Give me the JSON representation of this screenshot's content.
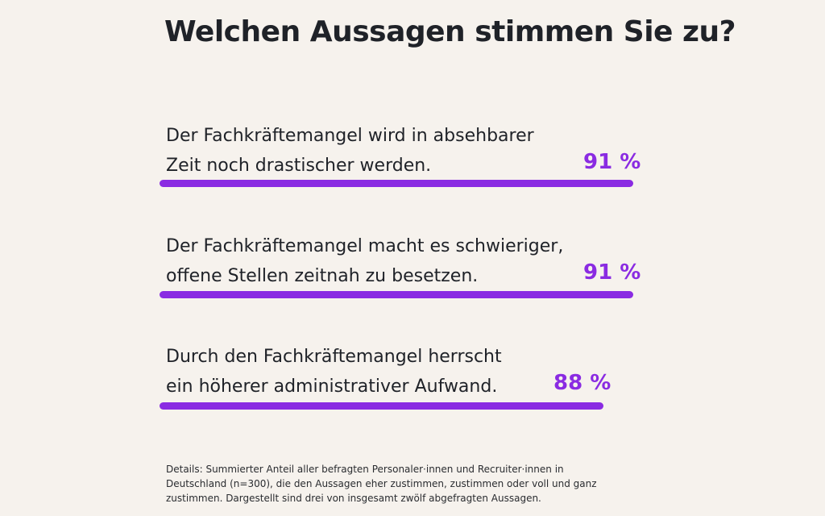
{
  "chart_data": {
    "type": "bar",
    "orientation": "horizontal",
    "title": "Welchen Aussagen stimmen Sie zu?",
    "categories": [
      "Der Fachkräftemangel wird in absehbarer Zeit noch drastischer werden.",
      "Der Fachkräftemangel macht es schwieriger, offene Stellen zeitnah zu besetzen.",
      "Durch den Fachkräftemangel herrscht ein höherer administrativer Aufwand."
    ],
    "values": [
      91,
      91,
      88
    ],
    "unit": "%",
    "xlim": [
      0,
      100
    ],
    "bar_color": "#8a2be2",
    "footnote": "Details: Summierter Anteil aller befragten Personaler·innen und Recruiter·innen in Deutschland (n=300), die den Aussagen eher zustimmen, zustimmen oder voll und ganz zustimmen. Dargestellt sind drei von insgesamt zwölf abgefragten Aussagen."
  },
  "items": [
    {
      "label": "Der Fachkräftemangel wird in absehbarer\nZeit noch drastischer werden.",
      "value_label": "91 %"
    },
    {
      "label": "Der Fachkräftemangel macht es schwieriger,\noffene Stellen zeitnah zu besetzen.",
      "value_label": "91 %"
    },
    {
      "label": "Durch den Fachkräftemangel herrscht\nein höherer administrativer Aufwand.",
      "value_label": "88 %"
    }
  ]
}
